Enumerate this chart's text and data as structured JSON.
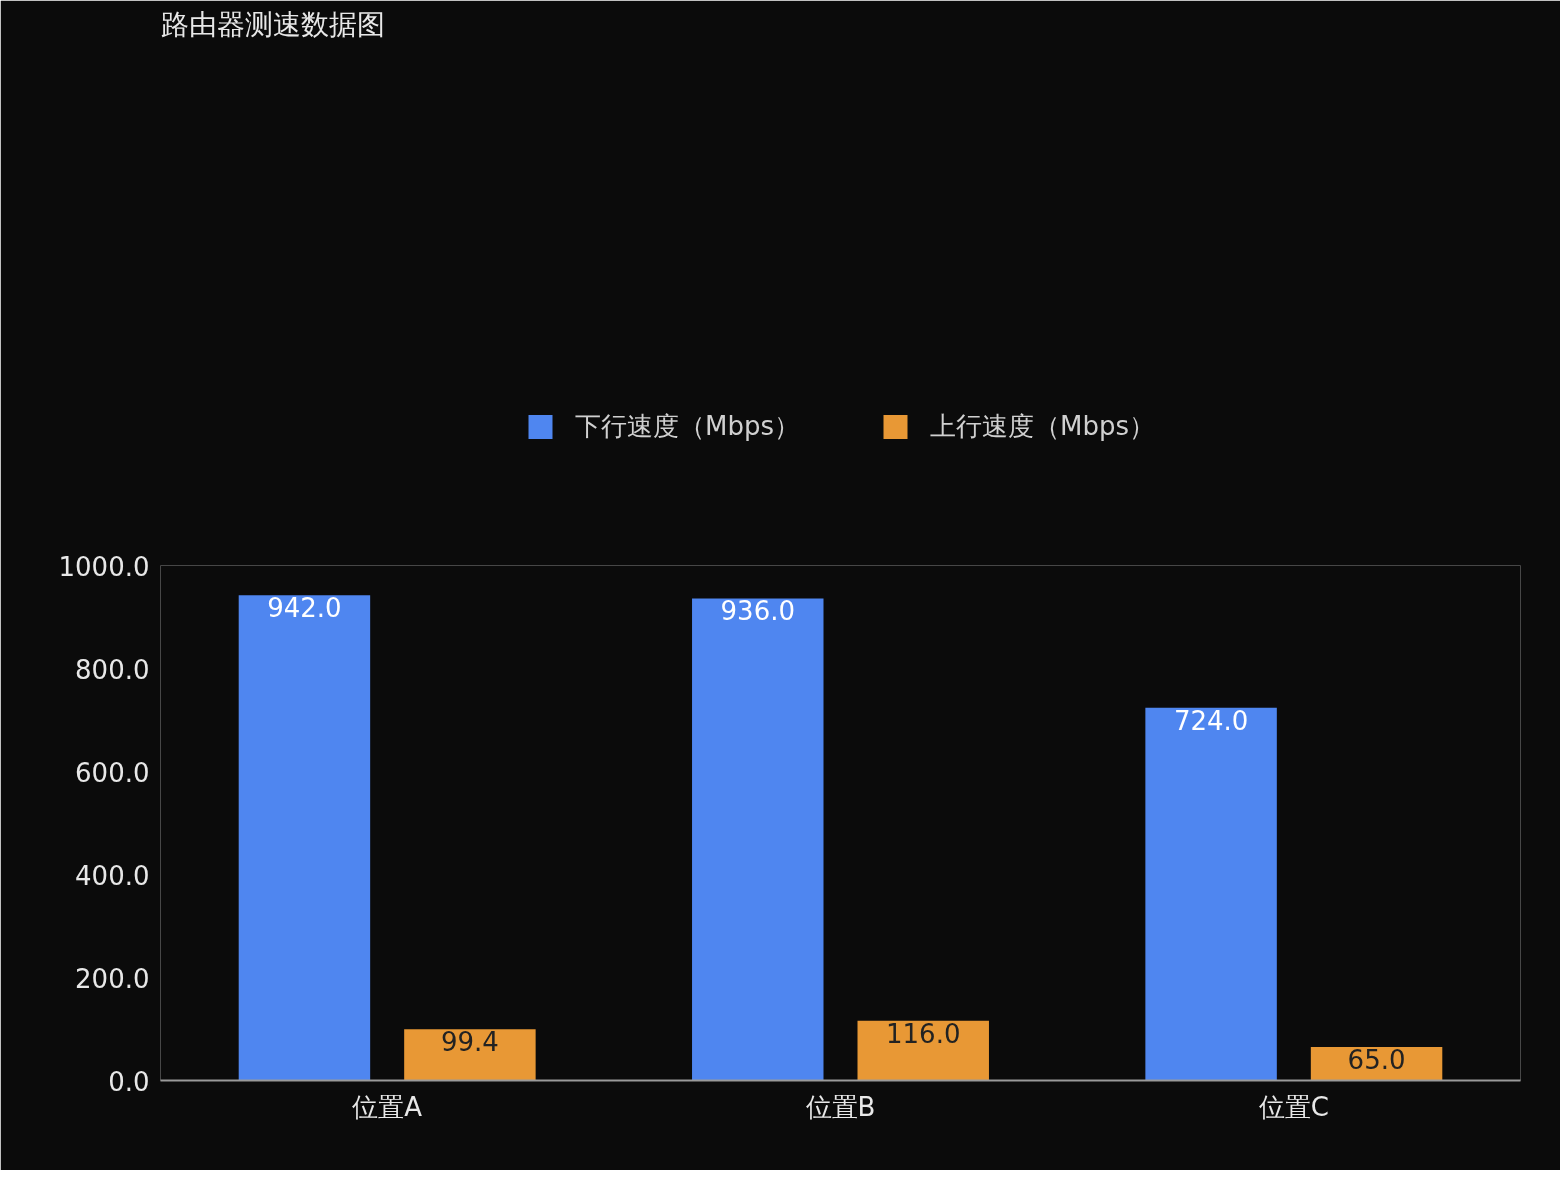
{
  "chart_data": {
    "type": "bar",
    "title": "路由器测速数据图",
    "categories": [
      "位置A",
      "位置B",
      "位置C"
    ],
    "series": [
      {
        "name": "下行速度（Mbps）",
        "color": "#4f86f0",
        "values": [
          942.0,
          936.0,
          724.0
        ],
        "value_labels": [
          "942.0",
          "936.0",
          "724.0"
        ]
      },
      {
        "name": "上行速度（Mbps）",
        "color": "#e89835",
        "values": [
          99.4,
          116.0,
          65.0
        ],
        "value_labels": [
          "99.4",
          "116.0",
          "65.0"
        ]
      }
    ],
    "ylim": [
      0,
      1000
    ],
    "yticks": [
      {
        "value": 0,
        "label": "0.0"
      },
      {
        "value": 200,
        "label": "200.0"
      },
      {
        "value": 400,
        "label": "400.0"
      },
      {
        "value": 600,
        "label": "600.0"
      },
      {
        "value": 800,
        "label": "800.0"
      },
      {
        "value": 1000,
        "label": "1000.0"
      }
    ],
    "grid": false,
    "legend": "top"
  }
}
